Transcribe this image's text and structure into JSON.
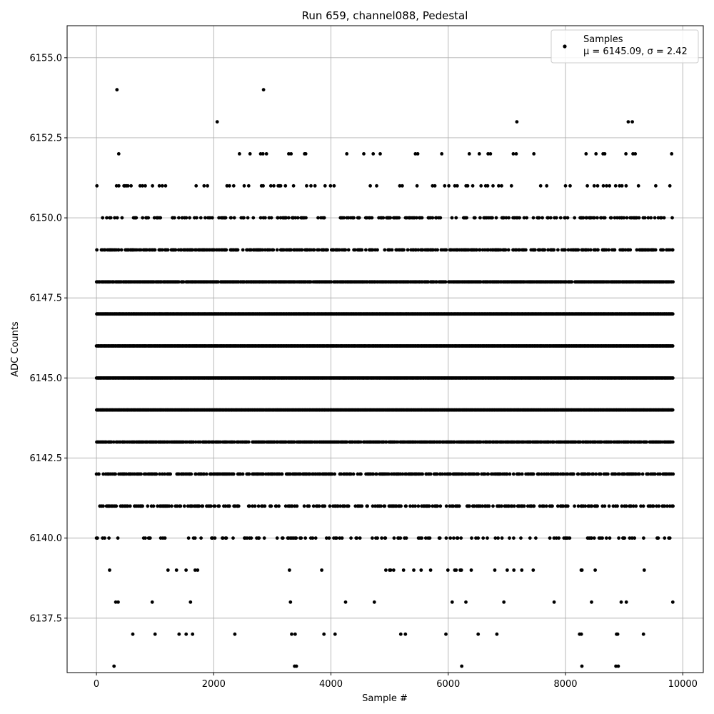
{
  "chart_data": {
    "type": "scatter",
    "title": "Run 659, channel088, Pedestal",
    "xlabel": "Sample #",
    "ylabel": "ADC Counts",
    "xlim": [
      -500,
      10350
    ],
    "ylim": [
      6135.8,
      6156.0
    ],
    "x_ticks": [
      0,
      2000,
      4000,
      6000,
      8000,
      10000
    ],
    "x_tick_labels": [
      "0",
      "2000",
      "4000",
      "6000",
      "8000",
      "10000"
    ],
    "y_ticks": [
      6137.5,
      6140.0,
      6142.5,
      6145.0,
      6147.5,
      6150.0,
      6152.5,
      6155.0
    ],
    "y_tick_labels": [
      "6137.5",
      "6140.0",
      "6142.5",
      "6145.0",
      "6147.5",
      "6150.0",
      "6152.5",
      "6155.0"
    ],
    "grid": true,
    "legend_position": "top-right",
    "marker_color": "#000000",
    "series": [
      {
        "name": "Samples",
        "label_line2": "μ = 6145.09, σ = 2.42",
        "x_range": [
          0,
          9830
        ],
        "sample_count": 9830,
        "mean": 6145.09,
        "sigma": 2.42,
        "levels": [
          6136,
          6137,
          6138,
          6139,
          6140,
          6141,
          6142,
          6143,
          6144,
          6145,
          6146,
          6147,
          6148,
          6149,
          6150,
          6151,
          6152,
          6153,
          6154
        ],
        "points": [
          [
            300,
            6136
          ],
          [
            3380,
            6136
          ],
          [
            3410,
            6136
          ],
          [
            6230,
            6136
          ],
          [
            8280,
            6136
          ],
          [
            8860,
            6136
          ],
          [
            8900,
            6136
          ],
          [
            620,
            6137
          ],
          [
            1000,
            6137
          ],
          [
            1410,
            6137
          ],
          [
            1530,
            6137
          ],
          [
            1640,
            6137
          ],
          [
            2360,
            6137
          ],
          [
            3330,
            6137
          ],
          [
            3390,
            6137
          ],
          [
            3880,
            6137
          ],
          [
            4070,
            6137
          ],
          [
            5190,
            6137
          ],
          [
            5270,
            6137
          ],
          [
            5960,
            6137
          ],
          [
            6510,
            6137
          ],
          [
            6830,
            6137
          ],
          [
            8240,
            6137
          ],
          [
            8270,
            6137
          ],
          [
            8870,
            6137
          ],
          [
            8890,
            6137
          ],
          [
            9330,
            6137
          ],
          [
            350,
            6154
          ],
          [
            2850,
            6154
          ],
          [
            2060,
            6153
          ],
          [
            7170,
            6153
          ],
          [
            9070,
            6153
          ],
          [
            9140,
            6153
          ],
          [
            380,
            6152
          ],
          [
            2440,
            6152
          ],
          [
            2620,
            6152
          ],
          [
            2800,
            6152
          ],
          [
            2840,
            6152
          ],
          [
            2900,
            6152
          ],
          [
            3280,
            6152
          ],
          [
            3320,
            6152
          ],
          [
            3550,
            6152
          ],
          [
            3570,
            6152
          ],
          [
            4270,
            6152
          ],
          [
            4560,
            6152
          ],
          [
            4720,
            6152
          ],
          [
            4840,
            6152
          ],
          [
            5440,
            6152
          ],
          [
            5480,
            6152
          ],
          [
            5890,
            6152
          ],
          [
            6360,
            6152
          ],
          [
            6530,
            6152
          ],
          [
            6680,
            6152
          ],
          [
            6720,
            6152
          ],
          [
            7110,
            6152
          ],
          [
            7160,
            6152
          ],
          [
            7460,
            6152
          ],
          [
            8350,
            6152
          ],
          [
            8520,
            6152
          ],
          [
            8640,
            6152
          ],
          [
            8670,
            6152
          ],
          [
            9030,
            6152
          ],
          [
            9150,
            6152
          ],
          [
            9190,
            6152
          ],
          [
            9810,
            6152
          ]
        ]
      }
    ]
  }
}
